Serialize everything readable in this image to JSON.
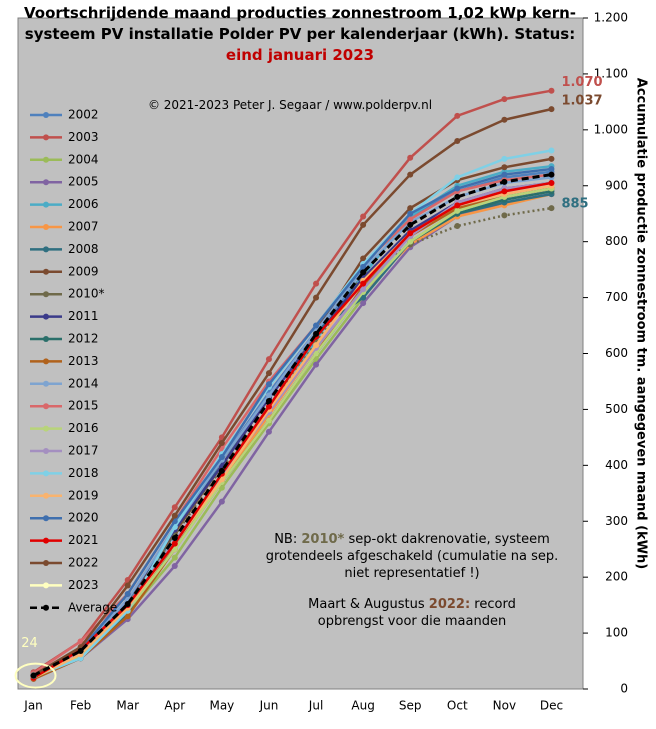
{
  "chart_data": {
    "type": "line",
    "title": "Voortschrijdende maand producties zonnestroom 1,02 kWp kern-systeem PV installatie Polder PV per kalenderjaar (kWh). Status: ",
    "title_highlight": "eind januari 2023",
    "subtitle": "© 2021-2023 Peter J. Segaar / www.polderpv.nl",
    "y_label": "Accumulatie productie zonnestroom tm. aangegeven maand (kWh)",
    "note_1": [
      "NB: ",
      "2010*",
      " sep-okt dakrenovatie, systeem grotendeels afgeschakeld (cumulatie na sep. niet representatief !)"
    ],
    "note_2": [
      "Maart & Augustus ",
      "2022:",
      " record opbrengst voor die maanden"
    ],
    "categories": [
      "Jan",
      "Feb",
      "Mar",
      "Apr",
      "May",
      "Jun",
      "Jul",
      "Aug",
      "Sep",
      "Oct",
      "Nov",
      "Dec"
    ],
    "ylim": [
      0,
      1200
    ],
    "yticks": [
      0,
      100,
      200,
      300,
      400,
      500,
      600,
      700,
      800,
      900,
      {
        "value": 1000,
        "label": "1.000"
      },
      {
        "value": 1100,
        "label": "1.100"
      },
      {
        "value": 1200,
        "label": "1.200"
      }
    ],
    "y_axis_side": "right",
    "legend": "left",
    "background": "#c0c0c0",
    "series": [
      {
        "name": "2002",
        "color": "#4f81bd",
        "values": [
          25,
          60,
          150,
          285,
          410,
          530,
          640,
          740,
          845,
          890,
          915,
          925
        ]
      },
      {
        "name": "2003",
        "color": "#c0504d",
        "values": [
          30,
          85,
          195,
          325,
          450,
          590,
          725,
          845,
          950,
          1025,
          1055,
          1070
        ],
        "value_labels": [
          null,
          null,
          null,
          null,
          null,
          null,
          null,
          null,
          null,
          null,
          null,
          "1.070"
        ]
      },
      {
        "name": "2004",
        "color": "#9bbb59",
        "values": [
          20,
          60,
          135,
          235,
          360,
          475,
          590,
          700,
          800,
          855,
          880,
          895
        ]
      },
      {
        "name": "2005",
        "color": "#8064a2",
        "values": [
          18,
          55,
          125,
          220,
          335,
          460,
          580,
          690,
          790,
          845,
          870,
          885
        ]
      },
      {
        "name": "2006",
        "color": "#4bacc6",
        "values": [
          22,
          65,
          140,
          260,
          380,
          490,
          625,
          740,
          845,
          900,
          925,
          935
        ]
      },
      {
        "name": "2007",
        "color": "#f79646",
        "values": [
          22,
          70,
          150,
          250,
          370,
          490,
          610,
          710,
          795,
          845,
          865,
          885
        ]
      },
      {
        "name": "2008",
        "color": "#2f6f80",
        "values": [
          20,
          55,
          135,
          280,
          410,
          520,
          640,
          700,
          800,
          850,
          870,
          885
        ],
        "value_labels": [
          null,
          null,
          null,
          null,
          null,
          null,
          null,
          null,
          null,
          null,
          null,
          "885"
        ]
      },
      {
        "name": "2009",
        "color": "#7a4a2f",
        "values": [
          22,
          65,
          160,
          280,
          400,
          520,
          640,
          770,
          860,
          910,
          933,
          948
        ]
      },
      {
        "name": "2010*",
        "color": "#6f6a4a",
        "dotted": true,
        "values": [
          20,
          60,
          150,
          275,
          395,
          500,
          620,
          740,
          795,
          828,
          847,
          860
        ]
      },
      {
        "name": "2011",
        "color": "#3b3b8a",
        "values": [
          22,
          65,
          160,
          285,
          400,
          520,
          630,
          735,
          820,
          870,
          895,
          905
        ]
      },
      {
        "name": "2012",
        "color": "#2a6f6a",
        "values": [
          20,
          55,
          140,
          260,
          370,
          480,
          600,
          710,
          800,
          850,
          875,
          890
        ]
      },
      {
        "name": "2013",
        "color": "#b0621c",
        "values": [
          18,
          55,
          130,
          250,
          370,
          480,
          600,
          720,
          810,
          860,
          880,
          895
        ]
      },
      {
        "name": "2014",
        "color": "#7ea4d0",
        "values": [
          25,
          70,
          160,
          290,
          410,
          525,
          640,
          750,
          835,
          880,
          905,
          915
        ]
      },
      {
        "name": "2015",
        "color": "#d9686a",
        "values": [
          28,
          85,
          170,
          300,
          430,
          550,
          650,
          760,
          840,
          890,
          910,
          920
        ]
      },
      {
        "name": "2016",
        "color": "#b8d47a",
        "values": [
          20,
          60,
          140,
          250,
          370,
          480,
          600,
          710,
          800,
          855,
          880,
          895
        ]
      },
      {
        "name": "2017",
        "color": "#a48fc0",
        "values": [
          22,
          65,
          150,
          265,
          380,
          495,
          610,
          715,
          810,
          870,
          895,
          905
        ]
      },
      {
        "name": "2018",
        "color": "#7fd0e6",
        "values": [
          22,
          55,
          140,
          290,
          420,
          540,
          650,
          760,
          850,
          915,
          948,
          963
        ]
      },
      {
        "name": "2019",
        "color": "#f9b36e",
        "values": [
          20,
          62,
          145,
          260,
          375,
          500,
          615,
          730,
          815,
          865,
          885,
          900
        ]
      },
      {
        "name": "2020",
        "color": "#3f6fae",
        "values": [
          25,
          70,
          170,
          300,
          415,
          545,
          650,
          755,
          850,
          895,
          920,
          930
        ]
      },
      {
        "name": "2021",
        "color": "#e00000",
        "values": [
          20,
          70,
          150,
          260,
          385,
          505,
          630,
          725,
          815,
          865,
          890,
          905
        ]
      },
      {
        "name": "2022",
        "color": "#7b4a2f",
        "values": [
          25,
          75,
          185,
          310,
          440,
          565,
          700,
          830,
          920,
          980,
          1018,
          1037
        ],
        "value_labels": [
          null,
          null,
          null,
          null,
          null,
          null,
          null,
          null,
          null,
          null,
          null,
          "1.037"
        ]
      },
      {
        "name": "2023",
        "color": "#ffffc0",
        "values": [
          24,
          null,
          null,
          null,
          null,
          null,
          null,
          null,
          null,
          null,
          null,
          null
        ],
        "value_labels": [
          "24",
          null,
          null,
          null,
          null,
          null,
          null,
          null,
          null,
          null,
          null,
          null
        ]
      },
      {
        "name": "Average",
        "color": "#000000",
        "dashed": true,
        "values": [
          24,
          68,
          152,
          270,
          390,
          515,
          635,
          745,
          830,
          880,
          907,
          920
        ]
      }
    ]
  }
}
